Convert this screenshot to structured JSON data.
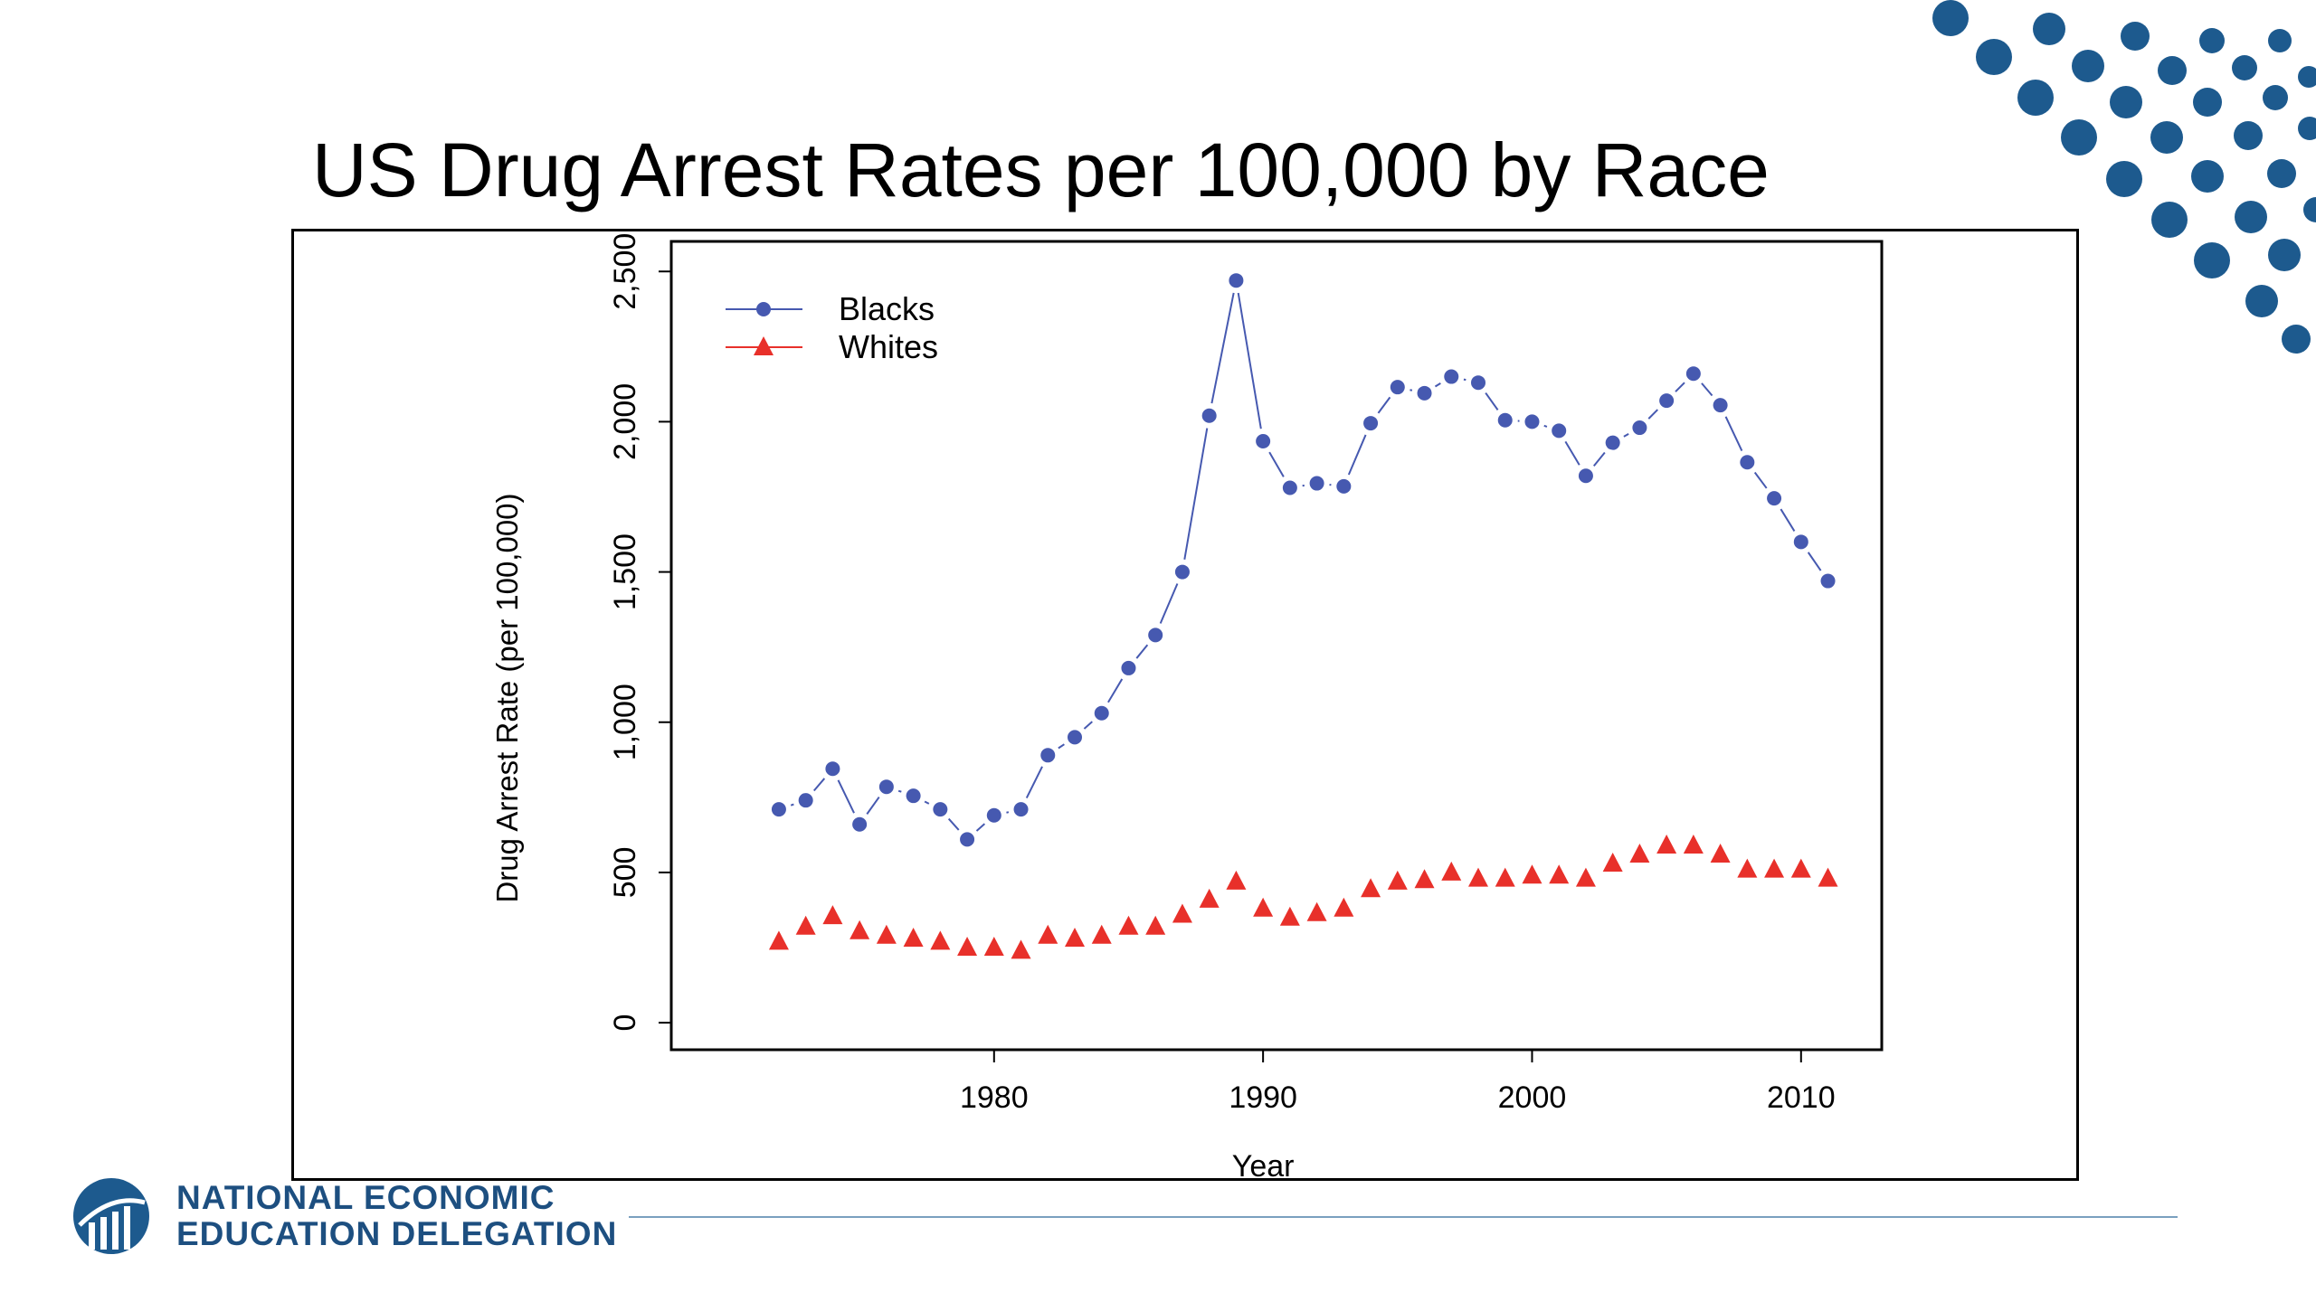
{
  "slide": {
    "title": "US Drug Arrest Rates per 100,000 by Race",
    "org_line1": "NATIONAL ECONOMIC",
    "org_line2": "EDUCATION DELEGATION",
    "brand_color": "#1d5a8e",
    "logo_icon": "need-globe-chart-logo"
  },
  "chart_data": {
    "type": "line",
    "title": "",
    "xlabel": "Year",
    "ylabel": "Drug Arrest Rate (per 100,000)",
    "xlim": [
      1968,
      2013
    ],
    "ylim": [
      -90,
      2600
    ],
    "xticks": [
      1980,
      1990,
      2000,
      2010
    ],
    "yticks": [
      0,
      500,
      1000,
      1500,
      2000,
      2500
    ],
    "ytick_labels": [
      "0",
      "500",
      "1,000",
      "1,500",
      "2,000",
      "2,500"
    ],
    "legend_position": "top-left",
    "x": [
      1972,
      1973,
      1974,
      1975,
      1976,
      1977,
      1978,
      1979,
      1980,
      1981,
      1982,
      1983,
      1984,
      1985,
      1986,
      1987,
      1988,
      1989,
      1990,
      1991,
      1992,
      1993,
      1994,
      1995,
      1996,
      1997,
      1998,
      1999,
      2000,
      2001,
      2002,
      2003,
      2004,
      2005,
      2006,
      2007,
      2008,
      2009,
      2010,
      2011
    ],
    "series": [
      {
        "name": "Blacks",
        "color": "#4659b0",
        "marker": "circle",
        "values": [
          710,
          740,
          845,
          660,
          785,
          755,
          710,
          610,
          690,
          710,
          890,
          950,
          1030,
          1180,
          1290,
          1500,
          2020,
          2470,
          1935,
          1780,
          1795,
          1785,
          1995,
          2115,
          2095,
          2150,
          2130,
          2005,
          2000,
          1970,
          1820,
          1930,
          1980,
          2070,
          2160,
          2055,
          1865,
          1745,
          1600,
          1470
        ]
      },
      {
        "name": "Whites",
        "color": "#e8302a",
        "marker": "triangle",
        "values": [
          270,
          320,
          355,
          305,
          290,
          280,
          270,
          250,
          250,
          240,
          290,
          280,
          290,
          320,
          320,
          360,
          410,
          470,
          380,
          350,
          365,
          380,
          445,
          470,
          475,
          500,
          480,
          480,
          490,
          490,
          480,
          530,
          560,
          590,
          590,
          560,
          510,
          510,
          510,
          480
        ]
      }
    ]
  }
}
